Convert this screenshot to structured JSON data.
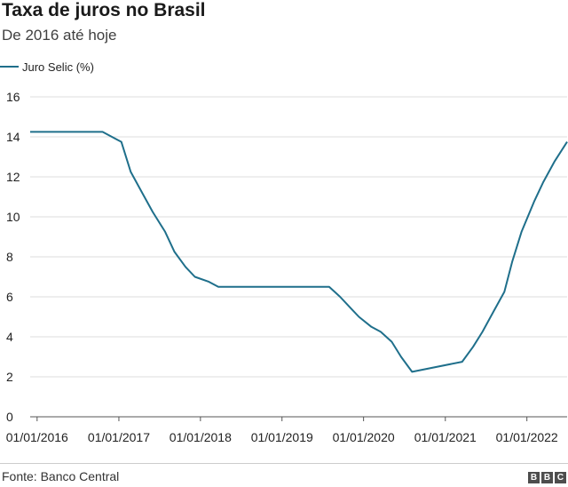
{
  "chart_data": {
    "type": "line",
    "title": "Taxa de juros no Brasil",
    "subtitle": "De 2016 até hoje",
    "source": "Fonte: Banco Central",
    "logo": [
      "B",
      "B",
      "C"
    ],
    "ylim": [
      0,
      16
    ],
    "yticks": [
      0,
      2,
      4,
      6,
      8,
      10,
      12,
      14,
      16
    ],
    "xlim": [
      "2015-12-01",
      "2022-06-30"
    ],
    "xticks": [
      "01/01/2016",
      "01/01/2017",
      "01/01/2018",
      "01/01/2019",
      "01/01/2020",
      "01/01/2021",
      "01/01/2022"
    ],
    "xtick_dates": [
      "2016-01-01",
      "2017-01-01",
      "2018-01-01",
      "2019-01-01",
      "2020-01-01",
      "2021-01-01",
      "2022-01-01"
    ],
    "grid": "horizontal",
    "legend": "top-left",
    "series": [
      {
        "name": "Juro Selic (%)",
        "color": "#1f6f8b",
        "x": [
          "2015-12-01",
          "2016-10-20",
          "2016-12-01",
          "2017-01-12",
          "2017-02-23",
          "2017-04-13",
          "2017-06-01",
          "2017-07-27",
          "2017-09-07",
          "2017-10-26",
          "2017-12-07",
          "2018-02-08",
          "2018-03-22",
          "2019-07-31",
          "2019-09-18",
          "2019-10-30",
          "2019-12-11",
          "2020-02-05",
          "2020-03-18",
          "2020-05-06",
          "2020-06-17",
          "2020-08-05",
          "2021-03-17",
          "2021-05-05",
          "2021-06-16",
          "2021-08-04",
          "2021-09-22",
          "2021-10-27",
          "2021-12-08",
          "2022-02-02",
          "2022-03-16",
          "2022-05-04",
          "2022-06-30"
        ],
        "values": [
          14.25,
          14.25,
          14.0,
          13.75,
          12.25,
          11.25,
          10.25,
          9.25,
          8.25,
          7.5,
          7.0,
          6.75,
          6.5,
          6.5,
          6.0,
          5.5,
          5.0,
          4.5,
          4.25,
          3.75,
          3.0,
          2.25,
          2.75,
          3.5,
          4.25,
          5.25,
          6.25,
          7.75,
          9.25,
          10.75,
          11.75,
          12.75,
          13.75
        ]
      }
    ]
  }
}
